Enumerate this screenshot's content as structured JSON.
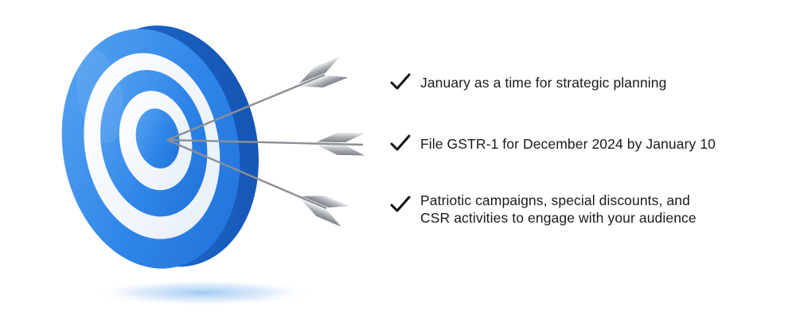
{
  "checklist": {
    "items": [
      {
        "lines": [
          "January as a time for strategic planning"
        ]
      },
      {
        "lines": [
          "File GSTR-1 for December 2024 by January 10"
        ]
      },
      {
        "lines": [
          "Patriotic campaigns, special discounts, and",
          "CSR activities to engage with your audience"
        ]
      }
    ]
  },
  "graphic": {
    "target_icon": "bullseye-target-icon",
    "arrow_icon": "arrow-icon",
    "check_icon": "checkmark-icon",
    "colors": {
      "target_blue": "#2f86e8",
      "target_blue_dark": "#1a63c8",
      "target_white": "#f4f8fd",
      "arrow_shaft": "#8a8f96",
      "fletching": "#b8bcc2",
      "text": "#1b1b1b",
      "shadow": "#b9d7f5"
    }
  }
}
